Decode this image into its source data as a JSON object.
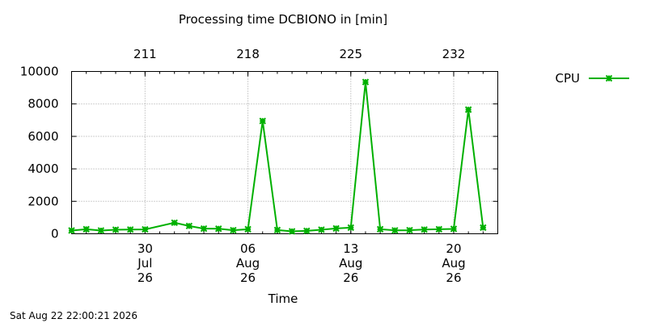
{
  "chart_data": {
    "type": "line",
    "title": "Processing time DCBIONO in [min]",
    "xlabel": "Time",
    "ylabel": "",
    "footer": "Sat Aug 22 22:00:21 2026",
    "ylim": [
      0,
      10000
    ],
    "y_ticks": [
      "0",
      "2000",
      "4000",
      "6000",
      "8000",
      "10000"
    ],
    "x_range": [
      "2026-07-25",
      "2026-08-23"
    ],
    "x_ticks": [
      {
        "date": "2026-07-30",
        "lines": [
          "30",
          "Jul",
          "26"
        ]
      },
      {
        "date": "2026-08-06",
        "lines": [
          "06",
          "Aug",
          "26"
        ]
      },
      {
        "date": "2026-08-13",
        "lines": [
          "13",
          "Aug",
          "26"
        ]
      },
      {
        "date": "2026-08-20",
        "lines": [
          "20",
          "Aug",
          "26"
        ]
      }
    ],
    "x2_ticks": [
      {
        "date": "2026-07-30",
        "label": "211"
      },
      {
        "date": "2026-08-06",
        "label": "218"
      },
      {
        "date": "2026-08-13",
        "label": "225"
      },
      {
        "date": "2026-08-20",
        "label": "232"
      }
    ],
    "grid": true,
    "legend": "top-right",
    "colors": {
      "series": "#00b000",
      "grid": "#a0a0a0",
      "axis": "#000000"
    },
    "series": [
      {
        "name": "CPU",
        "x": [
          "2026-07-25",
          "2026-07-26",
          "2026-07-27",
          "2026-07-28",
          "2026-07-29",
          "2026-07-30",
          "2026-08-01",
          "2026-08-02",
          "2026-08-03",
          "2026-08-04",
          "2026-08-05",
          "2026-08-06",
          "2026-08-07",
          "2026-08-08",
          "2026-08-09",
          "2026-08-10",
          "2026-08-11",
          "2026-08-12",
          "2026-08-13",
          "2026-08-14",
          "2026-08-15",
          "2026-08-16",
          "2026-08-17",
          "2026-08-18",
          "2026-08-19",
          "2026-08-20",
          "2026-08-21",
          "2026-08-22"
        ],
        "values": [
          200,
          280,
          200,
          250,
          260,
          270,
          680,
          480,
          320,
          310,
          220,
          280,
          6950,
          230,
          150,
          180,
          250,
          330,
          380,
          9350,
          280,
          210,
          220,
          260,
          280,
          300,
          7650,
          380
        ]
      }
    ]
  }
}
